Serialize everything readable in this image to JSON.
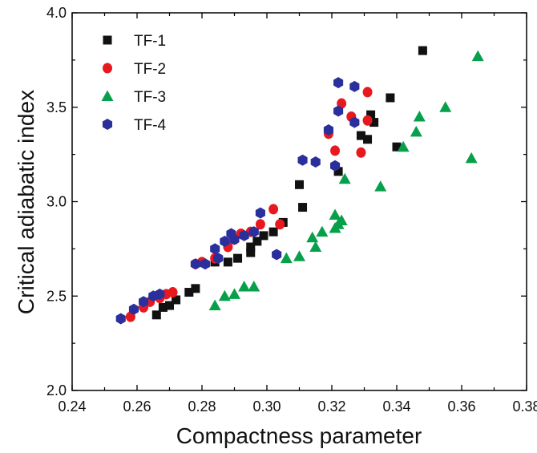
{
  "chart_data": {
    "type": "scatter",
    "xlabel": "Compactness parameter",
    "ylabel": "Critical adiabatic index",
    "xlim": [
      0.24,
      0.38
    ],
    "ylim": [
      2.0,
      4.0
    ],
    "xticks": [
      "0.24",
      "0.26",
      "0.28",
      "0.30",
      "0.32",
      "0.34",
      "0.36",
      "0.38"
    ],
    "yticks": [
      "2.0",
      "2.5",
      "3.0",
      "3.5",
      "4.0"
    ],
    "grid": false,
    "legend_position": "top-left",
    "series": [
      {
        "name": "TF-1",
        "marker": "square",
        "color": "#111111",
        "points": [
          [
            0.266,
            2.4
          ],
          [
            0.268,
            2.44
          ],
          [
            0.27,
            2.45
          ],
          [
            0.272,
            2.48
          ],
          [
            0.276,
            2.52
          ],
          [
            0.278,
            2.54
          ],
          [
            0.284,
            2.68
          ],
          [
            0.288,
            2.68
          ],
          [
            0.291,
            2.7
          ],
          [
            0.295,
            2.73
          ],
          [
            0.295,
            2.76
          ],
          [
            0.297,
            2.79
          ],
          [
            0.299,
            2.82
          ],
          [
            0.302,
            2.84
          ],
          [
            0.305,
            2.89
          ],
          [
            0.31,
            3.09
          ],
          [
            0.311,
            2.97
          ],
          [
            0.322,
            3.16
          ],
          [
            0.329,
            3.35
          ],
          [
            0.331,
            3.33
          ],
          [
            0.332,
            3.46
          ],
          [
            0.333,
            3.42
          ],
          [
            0.338,
            3.55
          ],
          [
            0.34,
            3.29
          ],
          [
            0.348,
            3.8
          ]
        ]
      },
      {
        "name": "TF-2",
        "marker": "circle",
        "color": "#e8191e",
        "points": [
          [
            0.258,
            2.39
          ],
          [
            0.262,
            2.44
          ],
          [
            0.264,
            2.47
          ],
          [
            0.267,
            2.49
          ],
          [
            0.269,
            2.51
          ],
          [
            0.271,
            2.52
          ],
          [
            0.278,
            2.67
          ],
          [
            0.28,
            2.68
          ],
          [
            0.284,
            2.7
          ],
          [
            0.288,
            2.76
          ],
          [
            0.29,
            2.8
          ],
          [
            0.292,
            2.83
          ],
          [
            0.295,
            2.84
          ],
          [
            0.298,
            2.88
          ],
          [
            0.302,
            2.96
          ],
          [
            0.304,
            2.88
          ],
          [
            0.319,
            3.36
          ],
          [
            0.321,
            3.27
          ],
          [
            0.323,
            3.52
          ],
          [
            0.326,
            3.45
          ],
          [
            0.329,
            3.26
          ],
          [
            0.331,
            3.43
          ],
          [
            0.331,
            3.58
          ]
        ]
      },
      {
        "name": "TF-3",
        "marker": "triangle",
        "color": "#07a04a",
        "points": [
          [
            0.284,
            2.45
          ],
          [
            0.287,
            2.5
          ],
          [
            0.29,
            2.51
          ],
          [
            0.293,
            2.55
          ],
          [
            0.296,
            2.55
          ],
          [
            0.306,
            2.7
          ],
          [
            0.31,
            2.71
          ],
          [
            0.314,
            2.81
          ],
          [
            0.315,
            2.76
          ],
          [
            0.317,
            2.84
          ],
          [
            0.321,
            2.86
          ],
          [
            0.321,
            2.93
          ],
          [
            0.322,
            2.88
          ],
          [
            0.323,
            2.9
          ],
          [
            0.324,
            3.12
          ],
          [
            0.335,
            3.08
          ],
          [
            0.342,
            3.29
          ],
          [
            0.346,
            3.37
          ],
          [
            0.347,
            3.45
          ],
          [
            0.355,
            3.5
          ],
          [
            0.363,
            3.23
          ],
          [
            0.365,
            3.77
          ]
        ]
      },
      {
        "name": "TF-4",
        "marker": "hexagon",
        "color": "#2a2f9c",
        "points": [
          [
            0.255,
            2.38
          ],
          [
            0.259,
            2.43
          ],
          [
            0.262,
            2.47
          ],
          [
            0.265,
            2.5
          ],
          [
            0.267,
            2.51
          ],
          [
            0.278,
            2.67
          ],
          [
            0.281,
            2.67
          ],
          [
            0.284,
            2.75
          ],
          [
            0.285,
            2.7
          ],
          [
            0.287,
            2.79
          ],
          [
            0.289,
            2.83
          ],
          [
            0.29,
            2.8
          ],
          [
            0.293,
            2.82
          ],
          [
            0.296,
            2.84
          ],
          [
            0.298,
            2.94
          ],
          [
            0.303,
            2.72
          ],
          [
            0.311,
            3.22
          ],
          [
            0.315,
            3.21
          ],
          [
            0.319,
            3.38
          ],
          [
            0.321,
            3.19
          ],
          [
            0.322,
            3.48
          ],
          [
            0.322,
            3.63
          ],
          [
            0.327,
            3.42
          ],
          [
            0.327,
            3.61
          ]
        ]
      }
    ]
  }
}
